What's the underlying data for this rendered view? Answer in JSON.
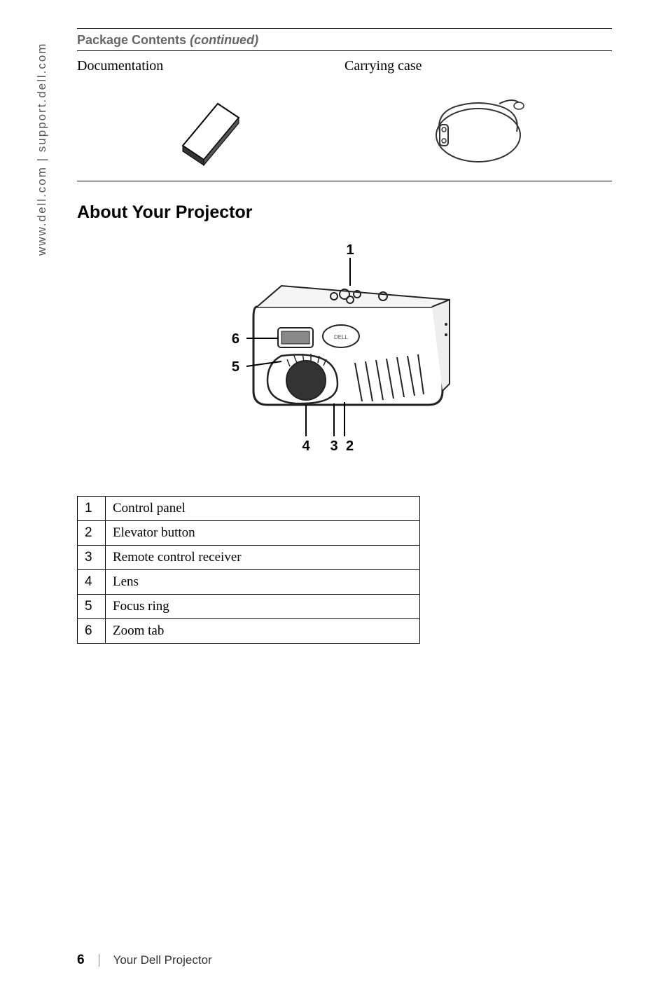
{
  "sidebar": "www.dell.com | support.dell.com",
  "package_contents": {
    "heading_main": "Package Contents",
    "heading_italic": "(continued)",
    "left_label": "Documentation",
    "right_label": "Carrying case"
  },
  "about_section": {
    "heading": "About Your Projector"
  },
  "figure": {
    "callouts": [
      "1",
      "2",
      "3",
      "4",
      "5",
      "6"
    ]
  },
  "parts": [
    {
      "num": "1",
      "desc": "Control panel"
    },
    {
      "num": "2",
      "desc": "Elevator button"
    },
    {
      "num": "3",
      "desc": "Remote control receiver"
    },
    {
      "num": "4",
      "desc": "Lens"
    },
    {
      "num": "5",
      "desc": "Focus ring"
    },
    {
      "num": "6",
      "desc": "Zoom tab"
    }
  ],
  "footer": {
    "page_number": "6",
    "label": "Your Dell Projector"
  },
  "colors": {
    "heading_gray": "#666666",
    "text_black": "#000000",
    "sidebar_gray": "#555555"
  }
}
